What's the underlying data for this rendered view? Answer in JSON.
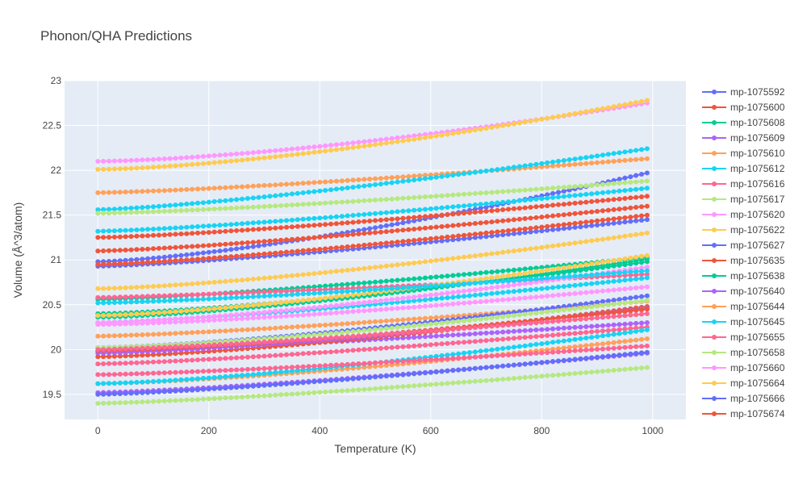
{
  "chart_data": {
    "type": "line",
    "title": "Phonon/QHA Predictions",
    "xlabel": "Temperature (K)",
    "ylabel": "Volume (Å^3/atom)",
    "xlim": [
      -60,
      1060
    ],
    "ylim": [
      19.22,
      23.0
    ],
    "x_ticks": [
      0,
      200,
      400,
      600,
      800,
      1000
    ],
    "y_ticks": [
      19.5,
      20,
      20.5,
      21,
      21.5,
      22,
      22.5,
      23
    ],
    "grid": true,
    "legend_position": "right",
    "x_sample": {
      "start": 0,
      "end": 990,
      "step": 10
    },
    "series": [
      {
        "name": "mp-1075592",
        "color": "#636efa",
        "v0": 20.98,
        "v1": 21.97,
        "curvature": 1.4
      },
      {
        "name": "mp-1075600",
        "color": "#EF553B",
        "v0": 21.25,
        "v1": 21.71,
        "curvature": 1.3
      },
      {
        "name": "mp-1075608",
        "color": "#00cc96",
        "v0": 20.56,
        "v1": 21.03,
        "curvature": 1.3
      },
      {
        "name": "mp-1075609",
        "color": "#ab63fa",
        "v0": 19.52,
        "v1": 19.96,
        "curvature": 1.3
      },
      {
        "name": "mp-1075610",
        "color": "#FFA15A",
        "v0": 21.75,
        "v1": 22.13,
        "curvature": 1.3
      },
      {
        "name": "mp-1075612",
        "color": "#19d3f3",
        "v0": 21.56,
        "v1": 22.24,
        "curvature": 1.3
      },
      {
        "name": "mp-1075616",
        "color": "#FF6692",
        "v0": 20.58,
        "v1": 20.84,
        "curvature": 1.2
      },
      {
        "name": "mp-1075617",
        "color": "#B6E880",
        "v0": 21.52,
        "v1": 21.88,
        "curvature": 1.3
      },
      {
        "name": "mp-1075620",
        "color": "#FF97FF",
        "v0": 22.1,
        "v1": 22.75,
        "curvature": 1.5
      },
      {
        "name": "mp-1075622",
        "color": "#FECB52",
        "v0": 22.01,
        "v1": 22.78,
        "curvature": 1.5
      },
      {
        "name": "mp-1075627",
        "color": "#636efa",
        "v0": 20.93,
        "v1": 21.45,
        "curvature": 1.3
      },
      {
        "name": "mp-1075635",
        "color": "#EF553B",
        "v0": 21.1,
        "v1": 21.6,
        "curvature": 1.3
      },
      {
        "name": "mp-1075638",
        "color": "#00cc96",
        "v0": 20.36,
        "v1": 21.01,
        "curvature": 1.4
      },
      {
        "name": "mp-1075640",
        "color": "#ab63fa",
        "v0": 19.98,
        "v1": 20.3,
        "curvature": 1.3
      },
      {
        "name": "mp-1075644",
        "color": "#FFA15A",
        "v0": 20.15,
        "v1": 20.54,
        "curvature": 1.3
      },
      {
        "name": "mp-1075645",
        "color": "#19d3f3",
        "v0": 20.3,
        "v1": 20.8,
        "curvature": 1.3
      },
      {
        "name": "mp-1075655",
        "color": "#FF6692",
        "v0": 19.84,
        "v1": 20.25,
        "curvature": 1.3
      },
      {
        "name": "mp-1075658",
        "color": "#B6E880",
        "v0": 19.4,
        "v1": 19.8,
        "curvature": 1.3
      },
      {
        "name": "mp-1075660",
        "color": "#FF97FF",
        "v0": 20.3,
        "v1": 20.92,
        "curvature": 1.4
      },
      {
        "name": "mp-1075664",
        "color": "#FECB52",
        "v0": 20.68,
        "v1": 21.3,
        "curvature": 1.4
      },
      {
        "name": "mp-1075666",
        "color": "#636efa",
        "v0": 20.02,
        "v1": 20.6,
        "curvature": 1.4
      },
      {
        "name": "mp-1075674",
        "color": "#EF553B",
        "v0": 19.92,
        "v1": 20.48,
        "curvature": 1.4
      },
      {
        "name": "",
        "color": "#00cc96",
        "v0": 20.4,
        "v1": 20.98,
        "curvature": 1.4
      },
      {
        "name": "",
        "color": "#ab63fa",
        "v0": 19.96,
        "v1": 20.46,
        "curvature": 1.4
      },
      {
        "name": "",
        "color": "#FFA15A",
        "v0": 19.62,
        "v1": 20.12,
        "curvature": 1.4
      },
      {
        "name": "",
        "color": "#19d3f3",
        "v0": 19.62,
        "v1": 20.22,
        "curvature": 1.4
      },
      {
        "name": "",
        "color": "#FF6692",
        "v0": 19.72,
        "v1": 20.04,
        "curvature": 1.3
      },
      {
        "name": "",
        "color": "#B6E880",
        "v0": 20.02,
        "v1": 20.55,
        "curvature": 1.4
      },
      {
        "name": "",
        "color": "#FF97FF",
        "v0": 20.28,
        "v1": 20.7,
        "curvature": 1.4
      },
      {
        "name": "",
        "color": "#FECB52",
        "v0": 20.38,
        "v1": 21.05,
        "curvature": 1.4
      },
      {
        "name": "",
        "color": "#636efa",
        "v0": 19.5,
        "v1": 19.97,
        "curvature": 1.3
      },
      {
        "name": "",
        "color": "#EF553B",
        "v0": 20.95,
        "v1": 21.5,
        "curvature": 1.3
      },
      {
        "name": "",
        "color": "#19d3f3",
        "v0": 21.32,
        "v1": 21.8,
        "curvature": 1.3
      },
      {
        "name": "",
        "color": "#EF553B",
        "v0": 19.99,
        "v1": 20.45,
        "curvature": 1.4
      },
      {
        "name": "",
        "color": "#FF6692",
        "v0": 20.0,
        "v1": 20.4,
        "curvature": 1.3
      },
      {
        "name": "",
        "color": "#19d3f3",
        "v0": 20.52,
        "v1": 20.88,
        "curvature": 1.3
      }
    ]
  }
}
